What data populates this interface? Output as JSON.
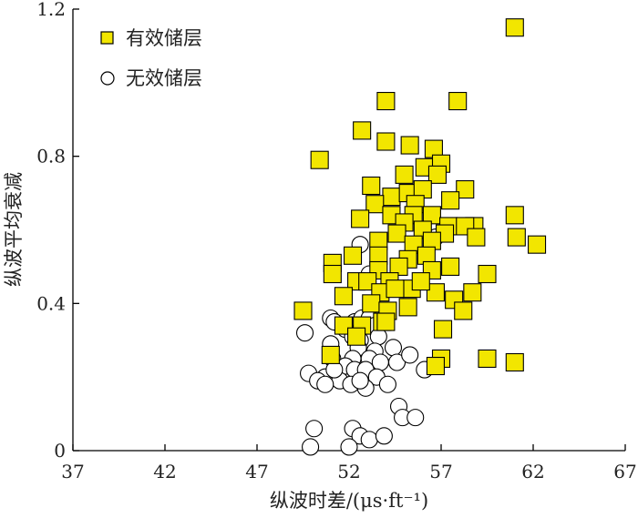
{
  "chart_data": {
    "type": "scatter",
    "title": "",
    "xlabel": "纵波时差/(μs·ft⁻¹)",
    "ylabel": "纵波平均衰减",
    "xlim": [
      37,
      67
    ],
    "ylim": [
      0,
      1.2
    ],
    "xticks": [
      37,
      42,
      47,
      52,
      57,
      62,
      67
    ],
    "yticks": [
      0,
      0.4,
      0.8,
      1.2
    ],
    "xtick_labels": [
      "37",
      "42",
      "47",
      "52",
      "57",
      "62",
      "67"
    ],
    "ytick_labels": [
      "0",
      "0.4",
      "0.8",
      "1.2"
    ],
    "legend_position": "top-left",
    "series": [
      {
        "name": "有效储层",
        "marker": "square",
        "color": "#f2e600",
        "points": [
          [
            61,
            1.15
          ],
          [
            54,
            0.95
          ],
          [
            57.9,
            0.95
          ],
          [
            52.7,
            0.87
          ],
          [
            54,
            0.84
          ],
          [
            55.3,
            0.83
          ],
          [
            56.6,
            0.82
          ],
          [
            50.4,
            0.79
          ],
          [
            56.1,
            0.77
          ],
          [
            57,
            0.78
          ],
          [
            55,
            0.75
          ],
          [
            56.8,
            0.75
          ],
          [
            58.3,
            0.71
          ],
          [
            53.2,
            0.72
          ],
          [
            54.3,
            0.69
          ],
          [
            55.2,
            0.7
          ],
          [
            56,
            0.71
          ],
          [
            53.4,
            0.67
          ],
          [
            55.6,
            0.67
          ],
          [
            57.5,
            0.68
          ],
          [
            54.3,
            0.64
          ],
          [
            55.5,
            0.64
          ],
          [
            56.5,
            0.64
          ],
          [
            52.6,
            0.63
          ],
          [
            61,
            0.64
          ],
          [
            55,
            0.62
          ],
          [
            57.4,
            0.61
          ],
          [
            58.8,
            0.61
          ],
          [
            58.3,
            0.61
          ],
          [
            54.6,
            0.59
          ],
          [
            56,
            0.6
          ],
          [
            57.2,
            0.59
          ],
          [
            58.9,
            0.58
          ],
          [
            61.1,
            0.58
          ],
          [
            62.2,
            0.56
          ],
          [
            53.6,
            0.57
          ],
          [
            55.5,
            0.56
          ],
          [
            56.5,
            0.57
          ],
          [
            52.2,
            0.53
          ],
          [
            53.6,
            0.53
          ],
          [
            55.2,
            0.52
          ],
          [
            56.2,
            0.53
          ],
          [
            57.5,
            0.5
          ],
          [
            51.1,
            0.51
          ],
          [
            53.6,
            0.49
          ],
          [
            54.7,
            0.5
          ],
          [
            56.5,
            0.49
          ],
          [
            59.5,
            0.48
          ],
          [
            51.1,
            0.48
          ],
          [
            52.4,
            0.46
          ],
          [
            53,
            0.46
          ],
          [
            54.2,
            0.46
          ],
          [
            55.4,
            0.44
          ],
          [
            56.7,
            0.43
          ],
          [
            58.7,
            0.43
          ],
          [
            51.7,
            0.42
          ],
          [
            53.7,
            0.43
          ],
          [
            54.5,
            0.44
          ],
          [
            55.9,
            0.46
          ],
          [
            57.7,
            0.41
          ],
          [
            53.2,
            0.4
          ],
          [
            54.1,
            0.38
          ],
          [
            55.2,
            0.39
          ],
          [
            58.2,
            0.38
          ],
          [
            49.5,
            0.38
          ],
          [
            53.8,
            0.35
          ],
          [
            51.7,
            0.34
          ],
          [
            52.7,
            0.34
          ],
          [
            54,
            0.35
          ],
          [
            57.1,
            0.33
          ],
          [
            52.4,
            0.31
          ],
          [
            51,
            0.26
          ],
          [
            57,
            0.25
          ],
          [
            59.5,
            0.25
          ],
          [
            61,
            0.24
          ],
          [
            56.7,
            0.23
          ]
        ]
      },
      {
        "name": "无效储层",
        "marker": "circle",
        "color": "#ffffff",
        "points": [
          [
            52.6,
            0.56
          ],
          [
            56.7,
            0.58
          ],
          [
            53.1,
            0.48
          ],
          [
            51,
            0.36
          ],
          [
            51.2,
            0.35
          ],
          [
            52.3,
            0.35
          ],
          [
            52.7,
            0.36
          ],
          [
            53.1,
            0.36
          ],
          [
            52.9,
            0.34
          ],
          [
            53.4,
            0.34
          ],
          [
            49.6,
            0.32
          ],
          [
            51.8,
            0.33
          ],
          [
            52.2,
            0.31
          ],
          [
            53.6,
            0.31
          ],
          [
            52.6,
            0.3
          ],
          [
            51,
            0.29
          ],
          [
            52.5,
            0.28
          ],
          [
            53.4,
            0.27
          ],
          [
            54.4,
            0.28
          ],
          [
            51.1,
            0.25
          ],
          [
            52.2,
            0.25
          ],
          [
            53.1,
            0.25
          ],
          [
            53.7,
            0.24
          ],
          [
            54.6,
            0.24
          ],
          [
            55.3,
            0.26
          ],
          [
            56.1,
            0.22
          ],
          [
            51.8,
            0.23
          ],
          [
            52.3,
            0.22
          ],
          [
            52.9,
            0.22
          ],
          [
            50.7,
            0.2
          ],
          [
            49.8,
            0.21
          ],
          [
            50.3,
            0.19
          ],
          [
            51.5,
            0.19
          ],
          [
            51.2,
            0.22
          ],
          [
            53.5,
            0.2
          ],
          [
            54.1,
            0.18
          ],
          [
            52.9,
            0.17
          ],
          [
            52.1,
            0.18
          ],
          [
            50.7,
            0.18
          ],
          [
            52.6,
            0.19
          ],
          [
            54.7,
            0.12
          ],
          [
            54.9,
            0.09
          ],
          [
            55.6,
            0.09
          ],
          [
            50.1,
            0.06
          ],
          [
            52.2,
            0.06
          ],
          [
            52.6,
            0.04
          ],
          [
            53.1,
            0.03
          ],
          [
            53.9,
            0.04
          ],
          [
            49.9,
            0.01
          ],
          [
            52,
            0.01
          ]
        ]
      }
    ]
  }
}
